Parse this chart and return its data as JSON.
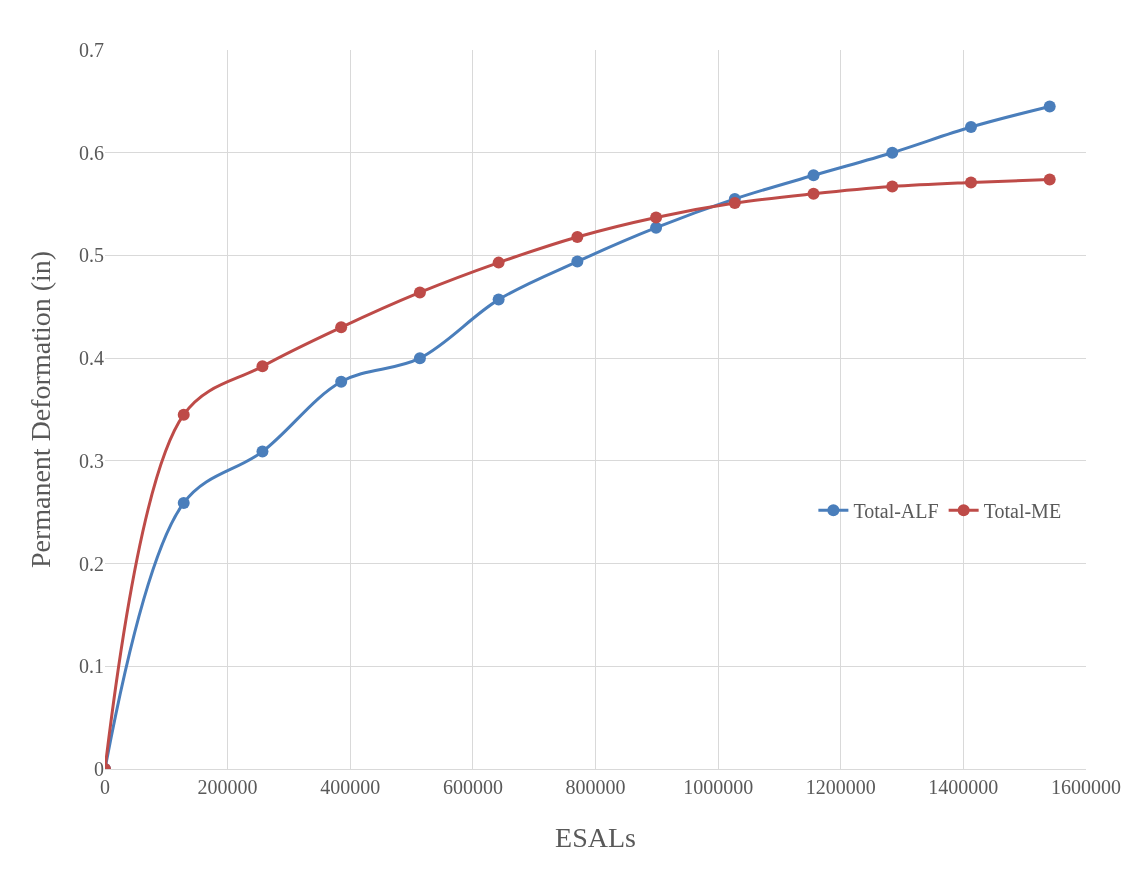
{
  "chart_data": {
    "type": "line",
    "xlabel": "ESALs",
    "ylabel": "Permanent Deformation (in)",
    "x": [
      0,
      128400,
      256800,
      385200,
      513600,
      642000,
      770400,
      898800,
      1027200,
      1155600,
      1284000,
      1412400,
      1540800
    ],
    "series": [
      {
        "name": "Total-ALF",
        "color": "#4a7ebb",
        "values": [
          0,
          0.259,
          0.309,
          0.377,
          0.4,
          0.457,
          0.494,
          0.527,
          0.555,
          0.578,
          0.6,
          0.625,
          0.645
        ]
      },
      {
        "name": "Total-ME",
        "color": "#be4b48",
        "values": [
          0,
          0.345,
          0.392,
          0.43,
          0.464,
          0.493,
          0.518,
          0.537,
          0.551,
          0.56,
          0.567,
          0.571,
          0.574
        ]
      }
    ],
    "xlim": [
      0,
      1600000
    ],
    "xticks": [
      0,
      200000,
      400000,
      600000,
      800000,
      1000000,
      1200000,
      1400000,
      1600000
    ],
    "ylim": [
      0,
      0.7
    ],
    "yticks": [
      0,
      0.1,
      0.2,
      0.3,
      0.4,
      0.5,
      0.6,
      0.7
    ],
    "grid": true,
    "legend": "right",
    "marker": "circle",
    "line_style": "solid"
  }
}
